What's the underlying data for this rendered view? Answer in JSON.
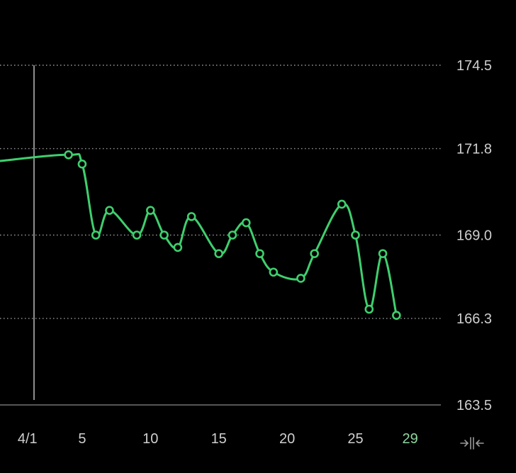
{
  "chart_data": {
    "type": "line",
    "title": "",
    "xlabel": "",
    "ylabel": "",
    "ylim": [
      163.5,
      174.5
    ],
    "y_ticks": [
      "174.5",
      "171.8",
      "169.0",
      "166.3",
      "163.5"
    ],
    "x_ticks": [
      {
        "day": 1,
        "label": "4/1"
      },
      {
        "day": 5,
        "label": "5"
      },
      {
        "day": 10,
        "label": "10"
      },
      {
        "day": 15,
        "label": "15"
      },
      {
        "day": 20,
        "label": "20"
      },
      {
        "day": 25,
        "label": "25"
      },
      {
        "day": 29,
        "label": "29",
        "current": true
      }
    ],
    "grid": "horizontal dotted",
    "line_color": "#3ecf6e",
    "series": [
      {
        "leading_value": 171.4,
        "points": [
          {
            "day": 4,
            "value": 171.6
          },
          {
            "day": 5,
            "value": 171.3
          },
          {
            "day": 6,
            "value": 169.0
          },
          {
            "day": 7,
            "value": 169.8
          },
          {
            "day": 9,
            "value": 169.0
          },
          {
            "day": 10,
            "value": 169.8
          },
          {
            "day": 11,
            "value": 169.0
          },
          {
            "day": 12,
            "value": 168.6
          },
          {
            "day": 13,
            "value": 169.6
          },
          {
            "day": 15,
            "value": 168.4
          },
          {
            "day": 16,
            "value": 169.0
          },
          {
            "day": 17,
            "value": 169.4
          },
          {
            "day": 18,
            "value": 168.4
          },
          {
            "day": 19,
            "value": 167.8
          },
          {
            "day": 21,
            "value": 167.6
          },
          {
            "day": 22,
            "value": 168.4
          },
          {
            "day": 24,
            "value": 170.0
          },
          {
            "day": 25,
            "value": 169.0
          },
          {
            "day": 26,
            "value": 166.6
          },
          {
            "day": 27,
            "value": 168.4
          },
          {
            "day": 28,
            "value": 166.4
          }
        ]
      }
    ]
  },
  "controls": {
    "fit_icon": "fit-to-screen-icon"
  }
}
